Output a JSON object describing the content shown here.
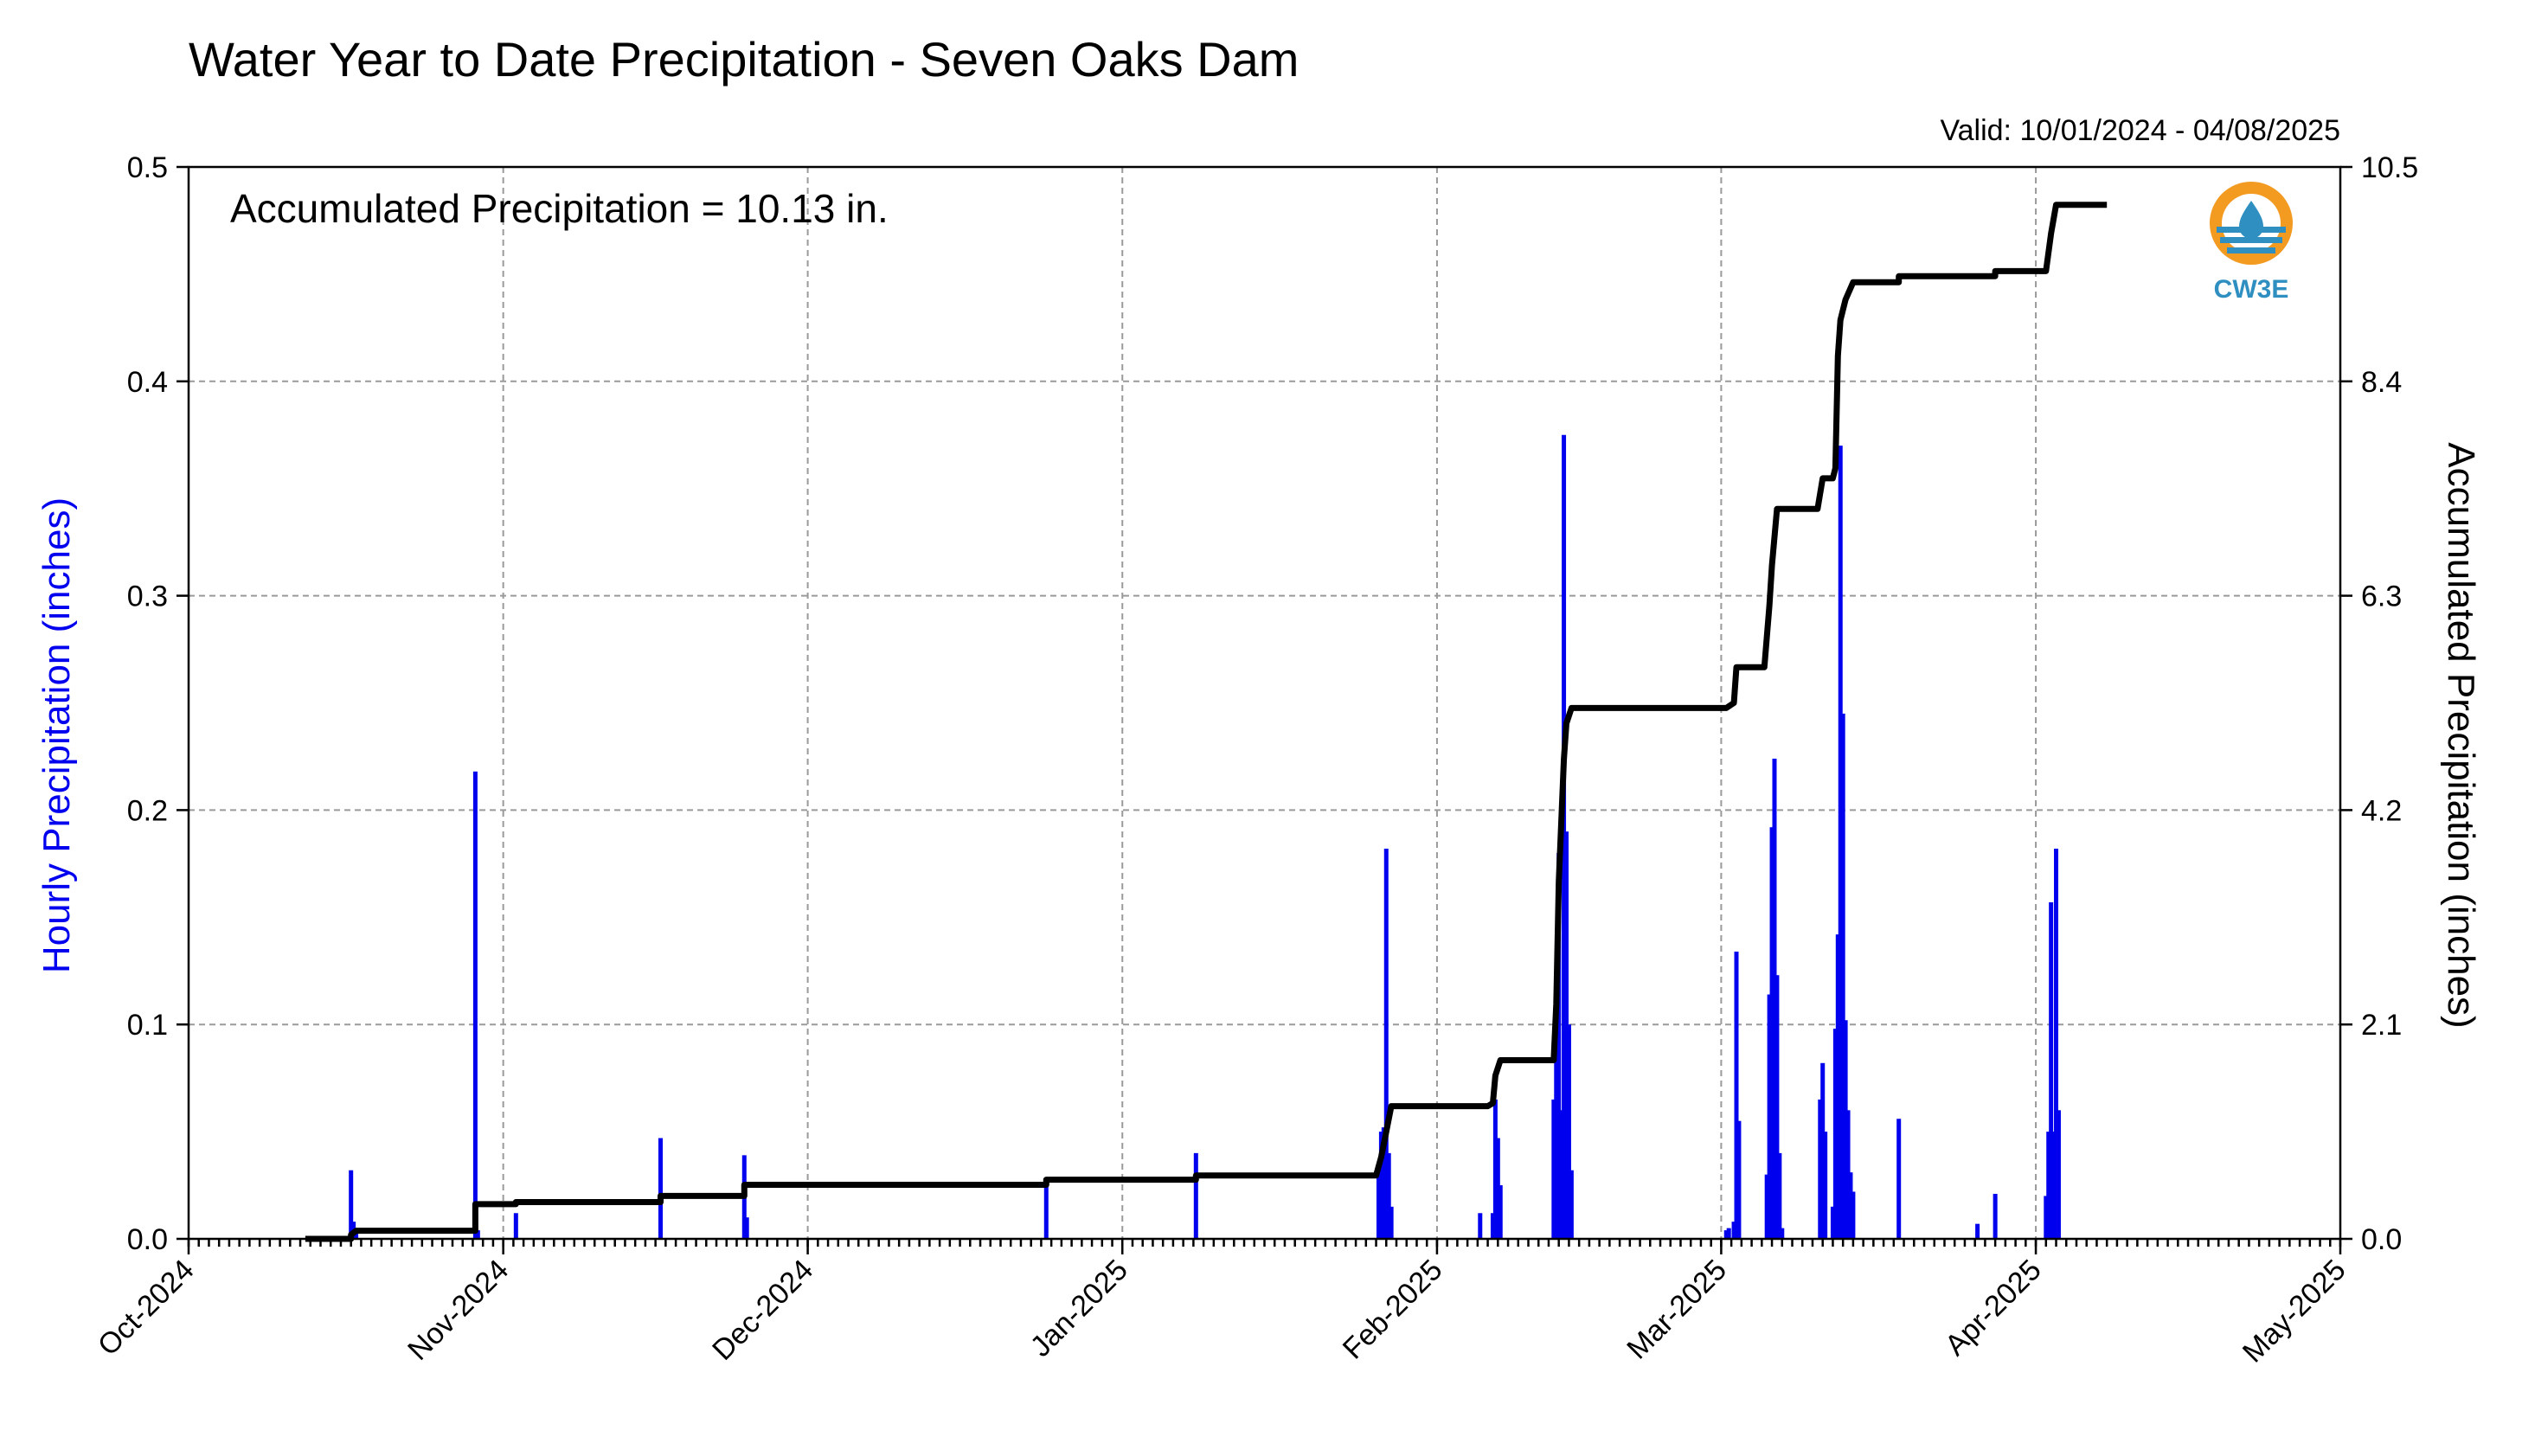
{
  "chart_data": {
    "type": "bar",
    "title": "Water Year to Date Precipitation - Seven Oaks Dam",
    "subtitle": "Valid: 10/01/2024 - 04/08/2025",
    "annotation": "Accumulated Precipitation = 10.13 in.",
    "logo_label": "CW3E",
    "xlabel": "",
    "ylabel": "Hourly Precipitation (inches)",
    "y2label": "Accumulated Precipitation (inches)",
    "x_axis": {
      "start": "2024-10-01",
      "end": "2025-05-01",
      "tick_dates": [
        "2024-10-01",
        "2024-11-01",
        "2024-12-01",
        "2025-01-01",
        "2025-02-01",
        "2025-03-01",
        "2025-04-01",
        "2025-05-01"
      ],
      "tick_labels": [
        "Oct-2024",
        "Nov-2024",
        "Dec-2024",
        "Jan-2025",
        "Feb-2025",
        "Mar-2025",
        "Apr-2025",
        "May-2025"
      ],
      "minor_ticks": "daily"
    },
    "ylim": [
      0,
      0.5
    ],
    "yticks": [
      "0.0",
      "0.1",
      "0.2",
      "0.3",
      "0.4",
      "0.5"
    ],
    "y2lim": [
      0,
      10.5
    ],
    "y2ticks": [
      "0.0",
      "2.1",
      "4.2",
      "6.3",
      "8.4",
      "10.5"
    ],
    "grid": true,
    "colors": {
      "hourly": "#0000ee",
      "accumulated": "#000000",
      "logo_orange": "#f39a21",
      "logo_blue": "#2f8fc0"
    },
    "series": [
      {
        "name": "Hourly Precipitation (inches)",
        "type": "bar",
        "points": [
          [
            "2024-10-17T00",
            0.032
          ],
          [
            "2024-10-17T06",
            0.008
          ],
          [
            "2024-10-17T12",
            0.004
          ],
          [
            "2024-10-29T06",
            0.218
          ],
          [
            "2024-10-29T12",
            0.004
          ],
          [
            "2024-11-02T06",
            0.012
          ],
          [
            "2024-11-16T12",
            0.047
          ],
          [
            "2024-11-24T18",
            0.039
          ],
          [
            "2024-11-25T00",
            0.01
          ],
          [
            "2024-12-24T12",
            0.025
          ],
          [
            "2025-01-08T06",
            0.04
          ],
          [
            "2025-01-26T06",
            0.03
          ],
          [
            "2025-01-26T12",
            0.05
          ],
          [
            "2025-01-26T18",
            0.052
          ],
          [
            "2025-01-27T00",
            0.182
          ],
          [
            "2025-01-27T06",
            0.04
          ],
          [
            "2025-01-27T12",
            0.015
          ],
          [
            "2025-02-05T06",
            0.012
          ],
          [
            "2025-02-06T12",
            0.012
          ],
          [
            "2025-02-06T18",
            0.065
          ],
          [
            "2025-02-07T00",
            0.047
          ],
          [
            "2025-02-07T06",
            0.025
          ],
          [
            "2025-02-12T12",
            0.065
          ],
          [
            "2025-02-12T18",
            0.12
          ],
          [
            "2025-02-13T00",
            0.18
          ],
          [
            "2025-02-13T06",
            0.06
          ],
          [
            "2025-02-13T12",
            0.375
          ],
          [
            "2025-02-13T18",
            0.19
          ],
          [
            "2025-02-14T00",
            0.1
          ],
          [
            "2025-02-14T06",
            0.032
          ],
          [
            "2025-03-01T12",
            0.004
          ],
          [
            "2025-03-01T18",
            0.005
          ],
          [
            "2025-03-02T06",
            0.008
          ],
          [
            "2025-03-02T12",
            0.134
          ],
          [
            "2025-03-02T18",
            0.055
          ],
          [
            "2025-03-05T12",
            0.03
          ],
          [
            "2025-03-05T18",
            0.114
          ],
          [
            "2025-03-06T00",
            0.192
          ],
          [
            "2025-03-06T06",
            0.224
          ],
          [
            "2025-03-06T12",
            0.123
          ],
          [
            "2025-03-06T18",
            0.04
          ],
          [
            "2025-03-07T00",
            0.005
          ],
          [
            "2025-03-10T18",
            0.065
          ],
          [
            "2025-03-11T00",
            0.082
          ],
          [
            "2025-03-11T06",
            0.05
          ],
          [
            "2025-03-12T00",
            0.015
          ],
          [
            "2025-03-12T06",
            0.098
          ],
          [
            "2025-03-12T12",
            0.142
          ],
          [
            "2025-03-12T18",
            0.37
          ],
          [
            "2025-03-13T00",
            0.245
          ],
          [
            "2025-03-13T06",
            0.102
          ],
          [
            "2025-03-13T12",
            0.06
          ],
          [
            "2025-03-13T18",
            0.031
          ],
          [
            "2025-03-14T00",
            0.022
          ],
          [
            "2025-03-18T12",
            0.056
          ],
          [
            "2025-03-26T06",
            0.007
          ],
          [
            "2025-03-28T00",
            0.021
          ],
          [
            "2025-04-02T00",
            0.02
          ],
          [
            "2025-04-02T06",
            0.05
          ],
          [
            "2025-04-02T12",
            0.157
          ],
          [
            "2025-04-02T18",
            0.05
          ],
          [
            "2025-04-03T00",
            0.182
          ],
          [
            "2025-04-03T06",
            0.06
          ]
        ]
      },
      {
        "name": "Accumulated Precipitation (inches)",
        "type": "line",
        "step": true,
        "points": [
          [
            "2024-10-12T12",
            0.0
          ],
          [
            "2024-10-17T00",
            0.0
          ],
          [
            "2024-10-17T00",
            0.04
          ],
          [
            "2024-10-17T12",
            0.08
          ],
          [
            "2024-10-29T06",
            0.08
          ],
          [
            "2024-10-29T06",
            0.34
          ],
          [
            "2024-11-02T06",
            0.34
          ],
          [
            "2024-11-02T06",
            0.36
          ],
          [
            "2024-11-16T12",
            0.36
          ],
          [
            "2024-11-16T12",
            0.42
          ],
          [
            "2024-11-24T18",
            0.42
          ],
          [
            "2024-11-24T18",
            0.53
          ],
          [
            "2024-12-24T12",
            0.53
          ],
          [
            "2024-12-24T12",
            0.58
          ],
          [
            "2025-01-08T06",
            0.58
          ],
          [
            "2025-01-08T06",
            0.62
          ],
          [
            "2025-01-26T00",
            0.62
          ],
          [
            "2025-01-26T12",
            0.8
          ],
          [
            "2025-01-27T00",
            1.05
          ],
          [
            "2025-01-27T12",
            1.3
          ],
          [
            "2025-02-06T00",
            1.3
          ],
          [
            "2025-02-06T12",
            1.33
          ],
          [
            "2025-02-06T18",
            1.6
          ],
          [
            "2025-02-07T06",
            1.75
          ],
          [
            "2025-02-12T12",
            1.75
          ],
          [
            "2025-02-12T18",
            2.3
          ],
          [
            "2025-02-13T00",
            3.5
          ],
          [
            "2025-02-13T12",
            4.7
          ],
          [
            "2025-02-13T18",
            5.05
          ],
          [
            "2025-02-14T06",
            5.2
          ],
          [
            "2025-03-01T12",
            5.2
          ],
          [
            "2025-03-02T06",
            5.25
          ],
          [
            "2025-03-02T12",
            5.6
          ],
          [
            "2025-03-05T06",
            5.6
          ],
          [
            "2025-03-05T18",
            6.2
          ],
          [
            "2025-03-06T00",
            6.6
          ],
          [
            "2025-03-06T12",
            7.15
          ],
          [
            "2025-03-10T12",
            7.15
          ],
          [
            "2025-03-11T00",
            7.45
          ],
          [
            "2025-03-12T00",
            7.45
          ],
          [
            "2025-03-12T06",
            7.55
          ],
          [
            "2025-03-12T12",
            8.65
          ],
          [
            "2025-03-12T18",
            9.0
          ],
          [
            "2025-03-13T06",
            9.2
          ],
          [
            "2025-03-14T00",
            9.37
          ],
          [
            "2025-03-18T12",
            9.37
          ],
          [
            "2025-03-18T12",
            9.43
          ],
          [
            "2025-03-28T00",
            9.43
          ],
          [
            "2025-03-28T00",
            9.48
          ],
          [
            "2025-04-02T00",
            9.48
          ],
          [
            "2025-04-02T12",
            9.85
          ],
          [
            "2025-04-03T00",
            10.13
          ],
          [
            "2025-04-08T00",
            10.13
          ]
        ]
      }
    ]
  }
}
